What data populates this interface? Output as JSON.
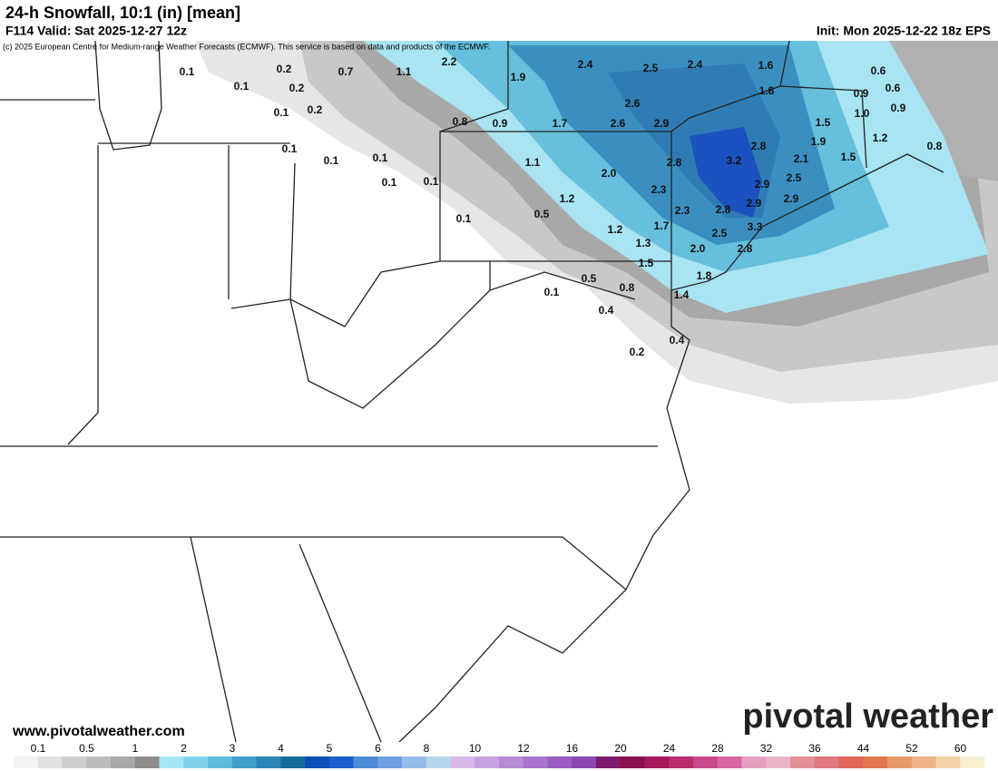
{
  "header": {
    "title": "24-h Snowfall, 10:1 (in) [mean]",
    "valid": "F114 Valid: Sat 2025-12-27 12z",
    "init": "Init: Mon 2025-12-22 18z EPS",
    "credit": "(c) 2025 European Centre for Medium-range Weather Forecasts (ECMWF). This service is based on data and products of the ECMWF."
  },
  "map": {
    "labels": [
      "0.1",
      "0.2",
      "0.7",
      "1.1",
      "2.2",
      "2.4",
      "2.5",
      "2.4",
      "1.6",
      "0.6",
      "0.1",
      "0.2",
      "1.9",
      "1.8",
      "0.9",
      "0.6",
      "0.1",
      "0.2",
      "2.6",
      "1.0",
      "0.9",
      "0.8",
      "0.9",
      "1.7",
      "2.6",
      "2.9",
      "1.5",
      "0.1",
      "1.9",
      "1.2",
      "2.8",
      "0.8",
      "0.1",
      "0.1",
      "1.1",
      "2.8",
      "3.2",
      "2.1",
      "1.5",
      "0.1",
      "0.1",
      "2.0",
      "2.5",
      "2.9",
      "2.3",
      "1.2",
      "2.9",
      "2.9",
      "0.1",
      "0.5",
      "2.3",
      "2.8",
      "1.7",
      "1.2",
      "3.3",
      "2.5",
      "1.3",
      "2.0",
      "2.8",
      "1.5",
      "1.8",
      "0.5",
      "0.1",
      "0.8",
      "1.4",
      "0.4",
      "0.4",
      "0.2"
    ]
  },
  "footer": {
    "site": "www.pivotalweather.com",
    "logo": "pivotal weather"
  },
  "colorbar": {
    "labels": [
      "0.1",
      "0.5",
      "1",
      "2",
      "3",
      "4",
      "5",
      "6",
      "8",
      "10",
      "12",
      "16",
      "20",
      "24",
      "28",
      "32",
      "36",
      "44",
      "52",
      "60"
    ],
    "colors": [
      "#f2f2f2",
      "#e2e2e2",
      "#cfcfcf",
      "#bdbdbd",
      "#a9a9a9",
      "#8e8e8e",
      "#a6e6f4",
      "#80d2ea",
      "#60bcdc",
      "#3f9fcc",
      "#2a86b6",
      "#176b9c",
      "#0d4fb4",
      "#1b5fce",
      "#4d8ad8",
      "#6e9fe0",
      "#94bde8",
      "#b8d6ee",
      "#d8b8e8",
      "#c8a2e0",
      "#b78ad6",
      "#a874cc",
      "#9a5cc0",
      "#8a46b2",
      "#7c1a6c",
      "#8a1050",
      "#a41a5a",
      "#b82c6c",
      "#c8488a",
      "#d866a2",
      "#e4a0be",
      "#eab4c8",
      "#e49098",
      "#e27880",
      "#e26658",
      "#e2764e",
      "#e89a6a",
      "#eeb488",
      "#f2d2a8",
      "#f8eed0"
    ]
  }
}
